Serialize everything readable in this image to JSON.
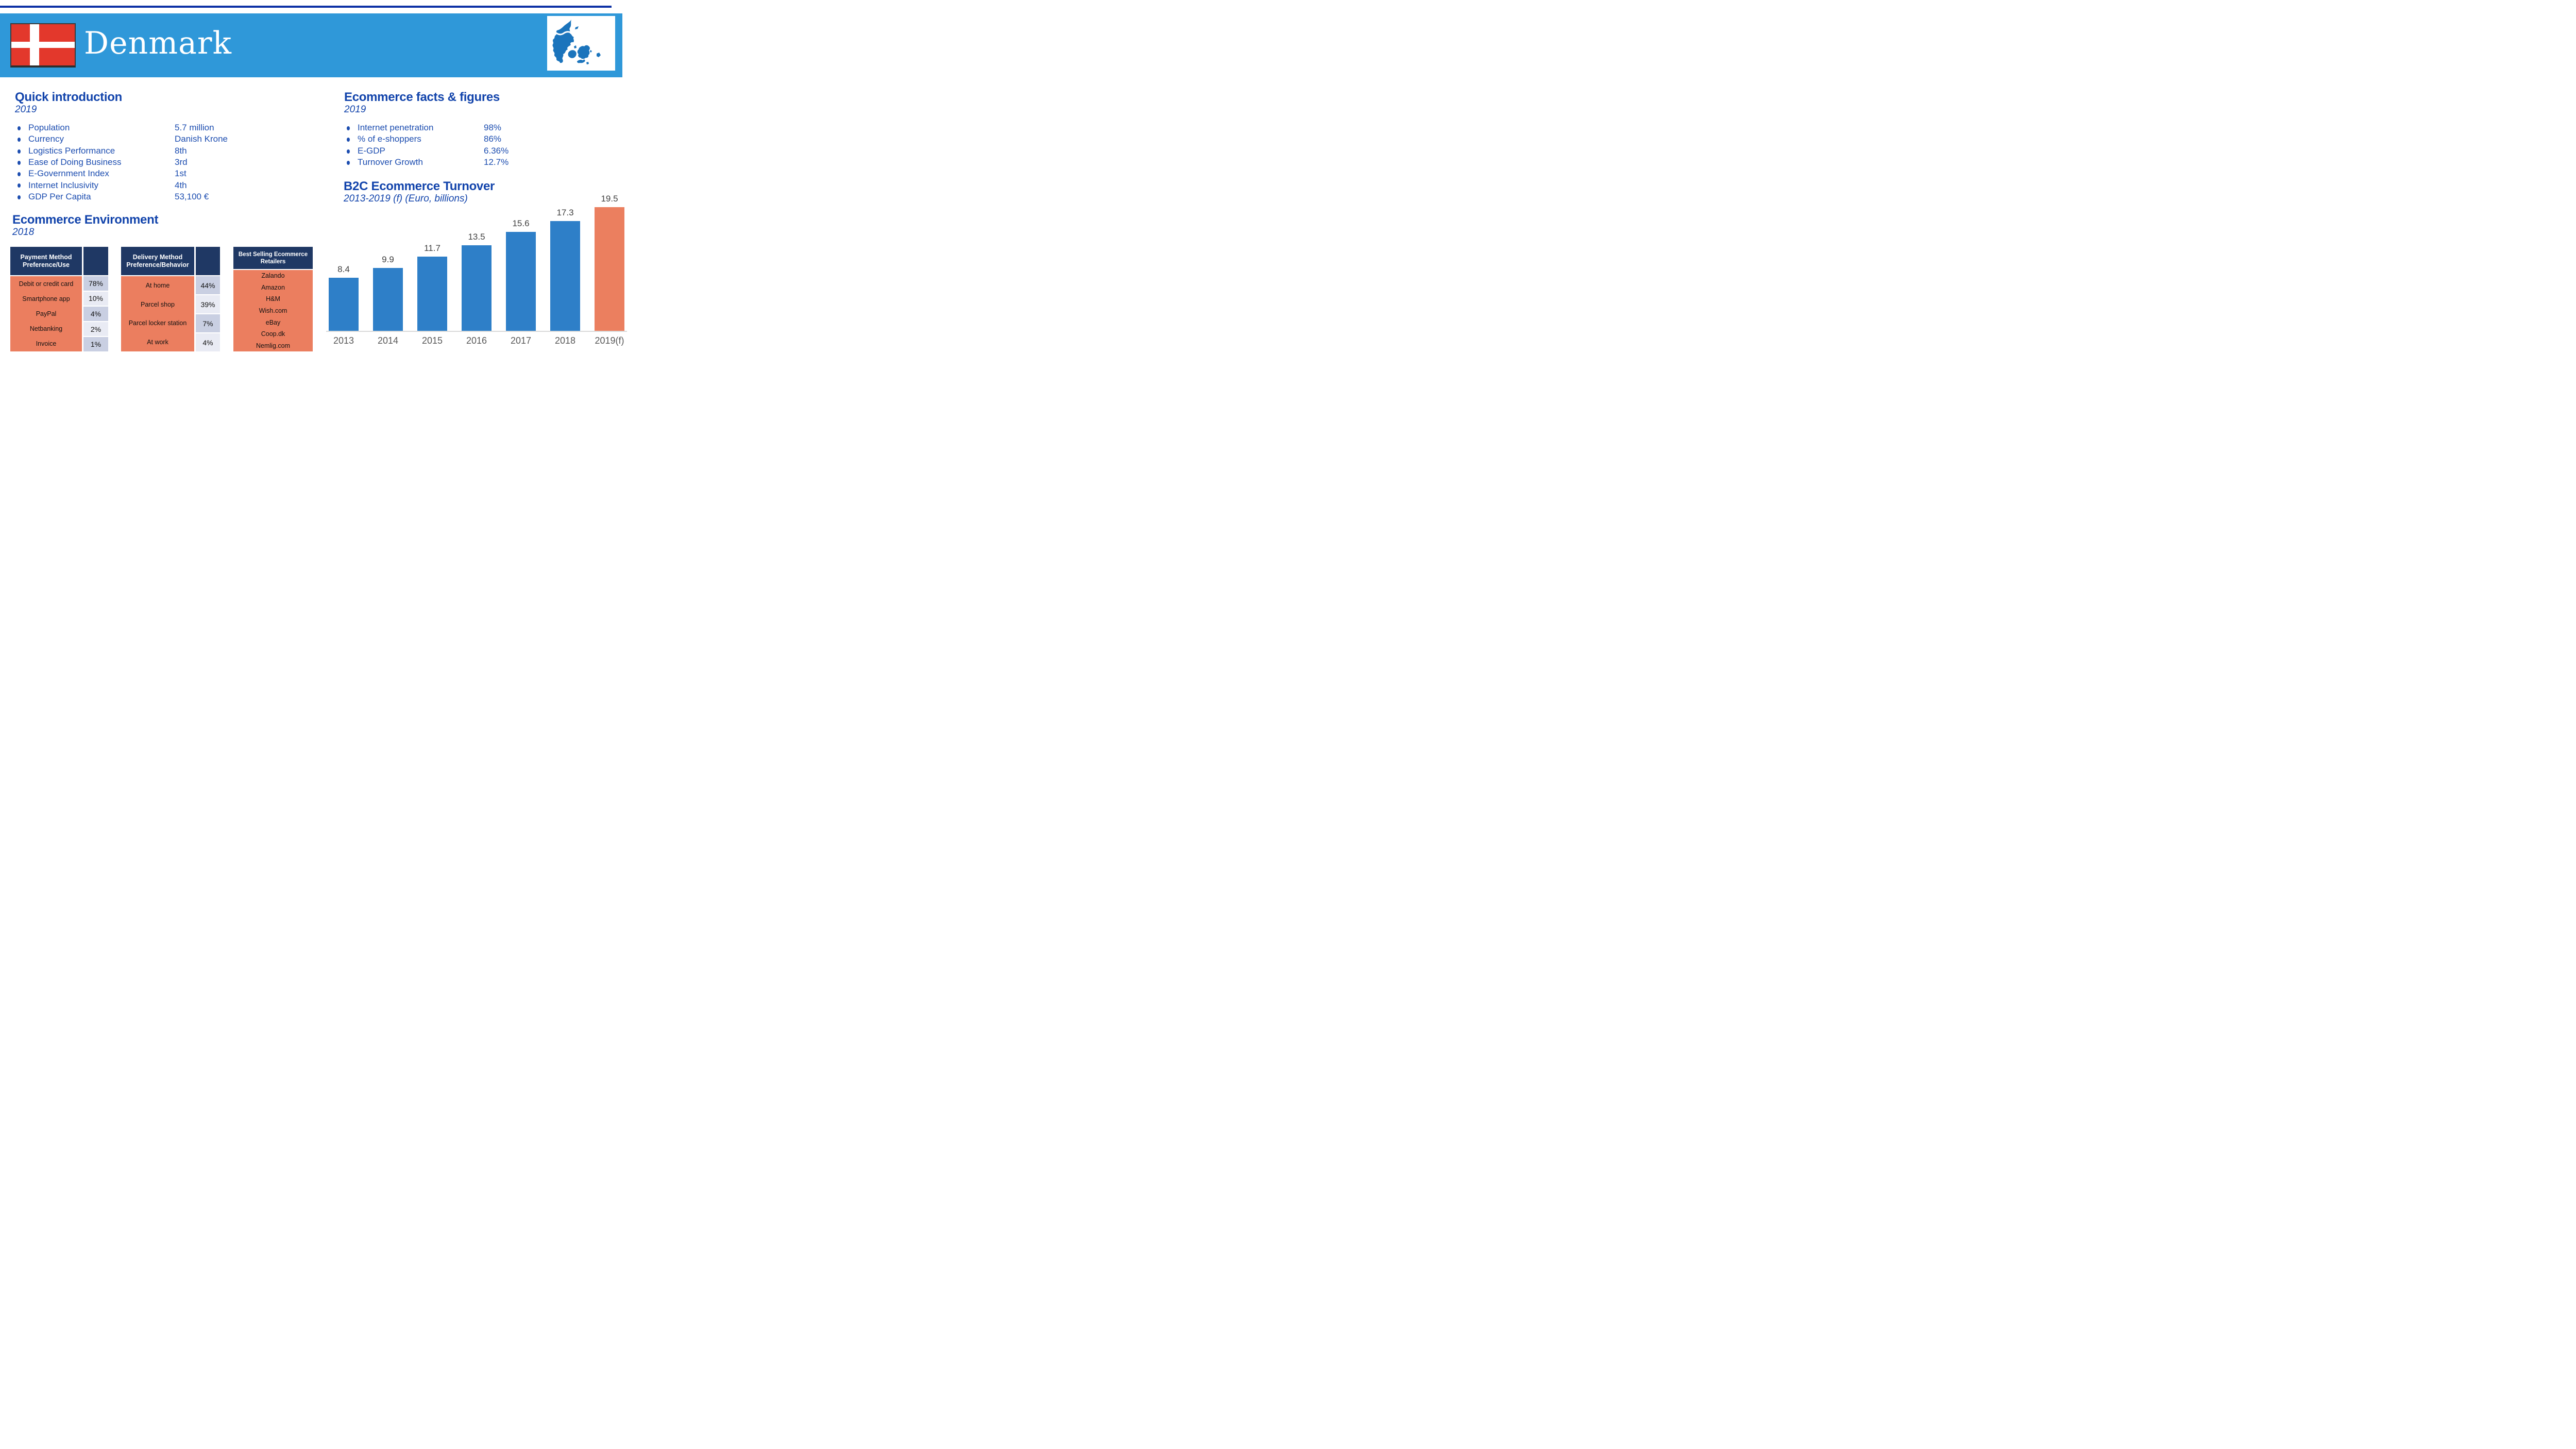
{
  "header": {
    "title": "Denmark",
    "banner_color": "#2F98D9",
    "top_line_color": "#0D31A5",
    "flag_red": "#E3382C",
    "map_blue": "#1B74BC"
  },
  "quick_intro": {
    "title": "Quick introduction",
    "year": "2019",
    "items": [
      {
        "label": "Population",
        "value": "5.7 million"
      },
      {
        "label": "Currency",
        "value": "Danish Krone"
      },
      {
        "label": "Logistics Performance",
        "value": "8th"
      },
      {
        "label": "Ease of Doing Business",
        "value": "3rd"
      },
      {
        "label": "E-Government Index",
        "value": "1st"
      },
      {
        "label": "Internet Inclusivity",
        "value": "4th"
      },
      {
        "label": "GDP Per Capita",
        "value": "53,100 €"
      }
    ]
  },
  "facts": {
    "title": "Ecommerce facts & figures",
    "year": "2019",
    "items": [
      {
        "label": "Internet penetration",
        "value": "98%"
      },
      {
        "label": "% of e-shoppers",
        "value": "86%"
      },
      {
        "label": "E-GDP",
        "value": "6.36%"
      },
      {
        "label": "Turnover Growth",
        "value": "12.7%"
      }
    ]
  },
  "environment": {
    "title": "Ecommerce Environment",
    "year": "2018"
  },
  "tables": {
    "payment": {
      "header": "Payment Method Preference/Use",
      "rows": [
        {
          "label": "Debit or credit card",
          "value": "78%"
        },
        {
          "label": "Smartphone app",
          "value": "10%"
        },
        {
          "label": "PayPal",
          "value": "4%"
        },
        {
          "label": "Netbanking",
          "value": "2%"
        },
        {
          "label": "Invoice",
          "value": "1%"
        }
      ]
    },
    "delivery": {
      "header": "Delivery Method Preference/Behavior",
      "rows": [
        {
          "label": "At home",
          "value": "44%"
        },
        {
          "label": "Parcel shop",
          "value": "39%"
        },
        {
          "label": "Parcel locker station",
          "value": "7%"
        },
        {
          "label": "At work",
          "value": "4%"
        }
      ]
    },
    "retailers": {
      "header": "Best Selling Ecommerce Retailers",
      "rows": [
        "Zalando",
        "Amazon",
        "H&M",
        "Wish.com",
        "eBay",
        "Coop.dk",
        "Nemlig.com"
      ]
    }
  },
  "chart_data": {
    "type": "bar",
    "title": "B2C Ecommerce Turnover",
    "subtitle": "2013-2019 (f) (Euro, billions)",
    "categories": [
      "2013",
      "2014",
      "2015",
      "2016",
      "2017",
      "2018",
      "2019(f)"
    ],
    "values": [
      8.4,
      9.9,
      11.7,
      13.5,
      15.6,
      17.3,
      19.5
    ],
    "ylim": [
      0,
      19.5
    ],
    "grid": false,
    "legend": false,
    "bar_color": "#2E7FC8",
    "last_bar_color": "#EB7F5F",
    "value_label_color": "#404040",
    "axis_label_color": "#595959"
  },
  "colors": {
    "heading_blue": "#1143AB",
    "body_blue": "#1C4DB0",
    "table_header_navy": "#1F3864",
    "salmon": "#EB7E5F",
    "value_row_dark": "#C9CFE2",
    "value_row_light": "#E9EBF4",
    "axis_line": "#D9D9D9"
  }
}
